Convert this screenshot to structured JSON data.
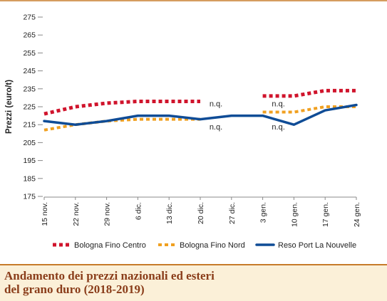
{
  "chart_data": {
    "type": "line",
    "title": "Andamento dei prezzi nazionali ed esteri del grano duro (2018-2019)",
    "title_lines": [
      "Andamento dei prezzi nazionali ed esteri",
      "del grano duro (2018-2019)"
    ],
    "xlabel": "",
    "ylabel": "Prezzi (euro/t)",
    "ylim": [
      175,
      275
    ],
    "yticks": [
      "275",
      "265",
      "255",
      "245",
      "235",
      "225",
      "215",
      "205",
      "195",
      "185",
      "175"
    ],
    "categories": [
      "15 nov.",
      "22 nov.",
      "29 nov.",
      "6 dic.",
      "13 dic.",
      "20 dic.",
      "27 dic.",
      "3 gen.",
      "10 gen.",
      "17 gen.",
      "24 gen."
    ],
    "grid": false,
    "legend_position": "bottom",
    "series": [
      {
        "name": "Bologna Fino Centro",
        "color": "#d0142c",
        "style": "dotted",
        "values": [
          221,
          225,
          227,
          228,
          228,
          228,
          null,
          231,
          231,
          234,
          234
        ]
      },
      {
        "name": "Bologna Fino Nord",
        "color": "#f0a020",
        "style": "dashed",
        "values": [
          212,
          215,
          217,
          218,
          218,
          218,
          null,
          222,
          222,
          225,
          225
        ]
      },
      {
        "name": "Reso Port La Nouvelle",
        "color": "#0f4c96",
        "style": "solid",
        "values": [
          217,
          215,
          217,
          220,
          220,
          218,
          220,
          220,
          215,
          223,
          226
        ]
      }
    ],
    "annotations": [
      {
        "text": "n.q.",
        "category": "20 dic.",
        "value": 228
      },
      {
        "text": "n.q.",
        "category": "3 gen.",
        "value": 228
      },
      {
        "text": "n.q.",
        "category": "20 dic.",
        "value": 215
      },
      {
        "text": "n.q.",
        "category": "3 gen.",
        "value": 215
      }
    ]
  }
}
